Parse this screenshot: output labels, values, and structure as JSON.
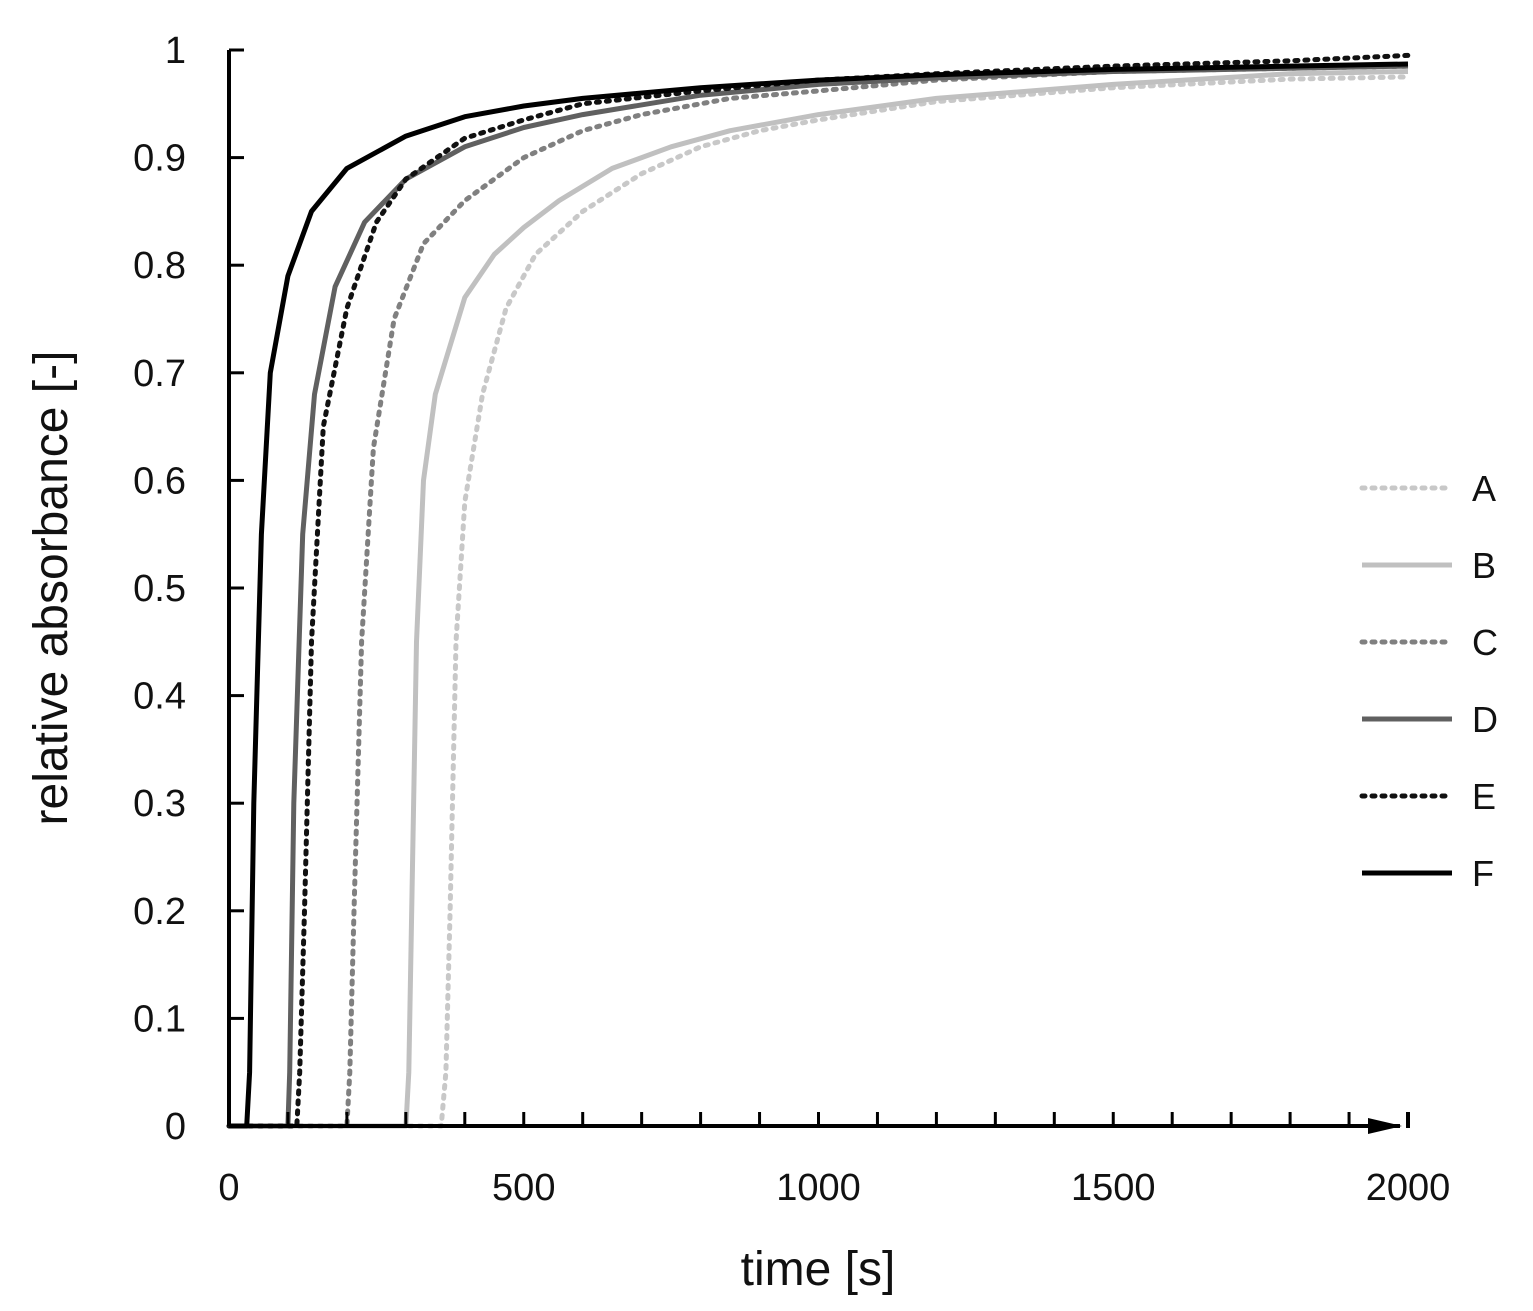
{
  "chart_data": {
    "type": "line",
    "xlabel": "time [s]",
    "ylabel": "relative absorbance  [-]",
    "xlim": [
      0,
      2000
    ],
    "ylim": [
      0,
      1
    ],
    "x_ticks": [
      0,
      500,
      1000,
      1500,
      2000
    ],
    "x_tick_labels": [
      "0",
      "500",
      "1000",
      "1500",
      "2000"
    ],
    "x_minor_step": 100,
    "y_ticks": [
      0,
      0.1,
      0.2,
      0.3,
      0.4,
      0.5,
      0.6,
      0.7,
      0.8,
      0.9,
      1
    ],
    "y_tick_labels": [
      "0",
      "0.1",
      "0.2",
      "0.3",
      "0.4",
      "0.5",
      "0.6",
      "0.7",
      "0.8",
      "0.9",
      "1"
    ],
    "grid": false,
    "legend_position": "right",
    "series": [
      {
        "name": "A",
        "color": "#c8c8c8",
        "style": "dotted",
        "points": [
          [
            0,
            0
          ],
          [
            360,
            0
          ],
          [
            368,
            0.05
          ],
          [
            375,
            0.2
          ],
          [
            385,
            0.45
          ],
          [
            400,
            0.58
          ],
          [
            430,
            0.68
          ],
          [
            470,
            0.76
          ],
          [
            520,
            0.81
          ],
          [
            600,
            0.85
          ],
          [
            700,
            0.885
          ],
          [
            800,
            0.91
          ],
          [
            900,
            0.925
          ],
          [
            1000,
            0.935
          ],
          [
            1200,
            0.952
          ],
          [
            1500,
            0.965
          ],
          [
            1800,
            0.973
          ],
          [
            2000,
            0.975
          ]
        ]
      },
      {
        "name": "B",
        "color": "#c0c0c0",
        "style": "solid",
        "points": [
          [
            0,
            0
          ],
          [
            300,
            0
          ],
          [
            305,
            0.05
          ],
          [
            310,
            0.2
          ],
          [
            318,
            0.45
          ],
          [
            330,
            0.6
          ],
          [
            350,
            0.68
          ],
          [
            400,
            0.77
          ],
          [
            450,
            0.81
          ],
          [
            500,
            0.835
          ],
          [
            560,
            0.86
          ],
          [
            650,
            0.89
          ],
          [
            750,
            0.91
          ],
          [
            850,
            0.925
          ],
          [
            1000,
            0.94
          ],
          [
            1200,
            0.955
          ],
          [
            1500,
            0.968
          ],
          [
            1800,
            0.978
          ],
          [
            2000,
            0.98
          ]
        ]
      },
      {
        "name": "C",
        "color": "#808080",
        "style": "dotted",
        "points": [
          [
            0,
            0
          ],
          [
            200,
            0
          ],
          [
            205,
            0.05
          ],
          [
            212,
            0.2
          ],
          [
            225,
            0.45
          ],
          [
            245,
            0.63
          ],
          [
            280,
            0.75
          ],
          [
            330,
            0.82
          ],
          [
            400,
            0.86
          ],
          [
            500,
            0.9
          ],
          [
            600,
            0.925
          ],
          [
            700,
            0.94
          ],
          [
            850,
            0.955
          ],
          [
            1000,
            0.962
          ],
          [
            1200,
            0.972
          ],
          [
            1500,
            0.98
          ],
          [
            2000,
            0.985
          ]
        ]
      },
      {
        "name": "D",
        "color": "#606060",
        "style": "solid",
        "points": [
          [
            0,
            0
          ],
          [
            100,
            0
          ],
          [
            103,
            0.05
          ],
          [
            110,
            0.3
          ],
          [
            125,
            0.55
          ],
          [
            145,
            0.68
          ],
          [
            180,
            0.78
          ],
          [
            230,
            0.84
          ],
          [
            300,
            0.88
          ],
          [
            400,
            0.91
          ],
          [
            500,
            0.928
          ],
          [
            600,
            0.94
          ],
          [
            800,
            0.958
          ],
          [
            1000,
            0.968
          ],
          [
            1200,
            0.974
          ],
          [
            1500,
            0.98
          ],
          [
            2000,
            0.985
          ]
        ]
      },
      {
        "name": "E",
        "color": "#111111",
        "style": "dotted",
        "points": [
          [
            0,
            0
          ],
          [
            115,
            0
          ],
          [
            120,
            0.05
          ],
          [
            128,
            0.2
          ],
          [
            140,
            0.45
          ],
          [
            160,
            0.65
          ],
          [
            200,
            0.76
          ],
          [
            250,
            0.84
          ],
          [
            300,
            0.88
          ],
          [
            400,
            0.918
          ],
          [
            500,
            0.935
          ],
          [
            600,
            0.95
          ],
          [
            800,
            0.962
          ],
          [
            1000,
            0.972
          ],
          [
            1200,
            0.978
          ],
          [
            1500,
            0.985
          ],
          [
            1800,
            0.99
          ],
          [
            2000,
            0.995
          ]
        ]
      },
      {
        "name": "F",
        "color": "#000000",
        "style": "solid",
        "points": [
          [
            0,
            0
          ],
          [
            30,
            0
          ],
          [
            35,
            0.05
          ],
          [
            42,
            0.3
          ],
          [
            55,
            0.55
          ],
          [
            70,
            0.7
          ],
          [
            100,
            0.79
          ],
          [
            140,
            0.85
          ],
          [
            200,
            0.89
          ],
          [
            300,
            0.92
          ],
          [
            400,
            0.938
          ],
          [
            500,
            0.948
          ],
          [
            600,
            0.955
          ],
          [
            800,
            0.965
          ],
          [
            1000,
            0.972
          ],
          [
            1200,
            0.977
          ],
          [
            1500,
            0.982
          ],
          [
            2000,
            0.987
          ]
        ]
      }
    ]
  }
}
